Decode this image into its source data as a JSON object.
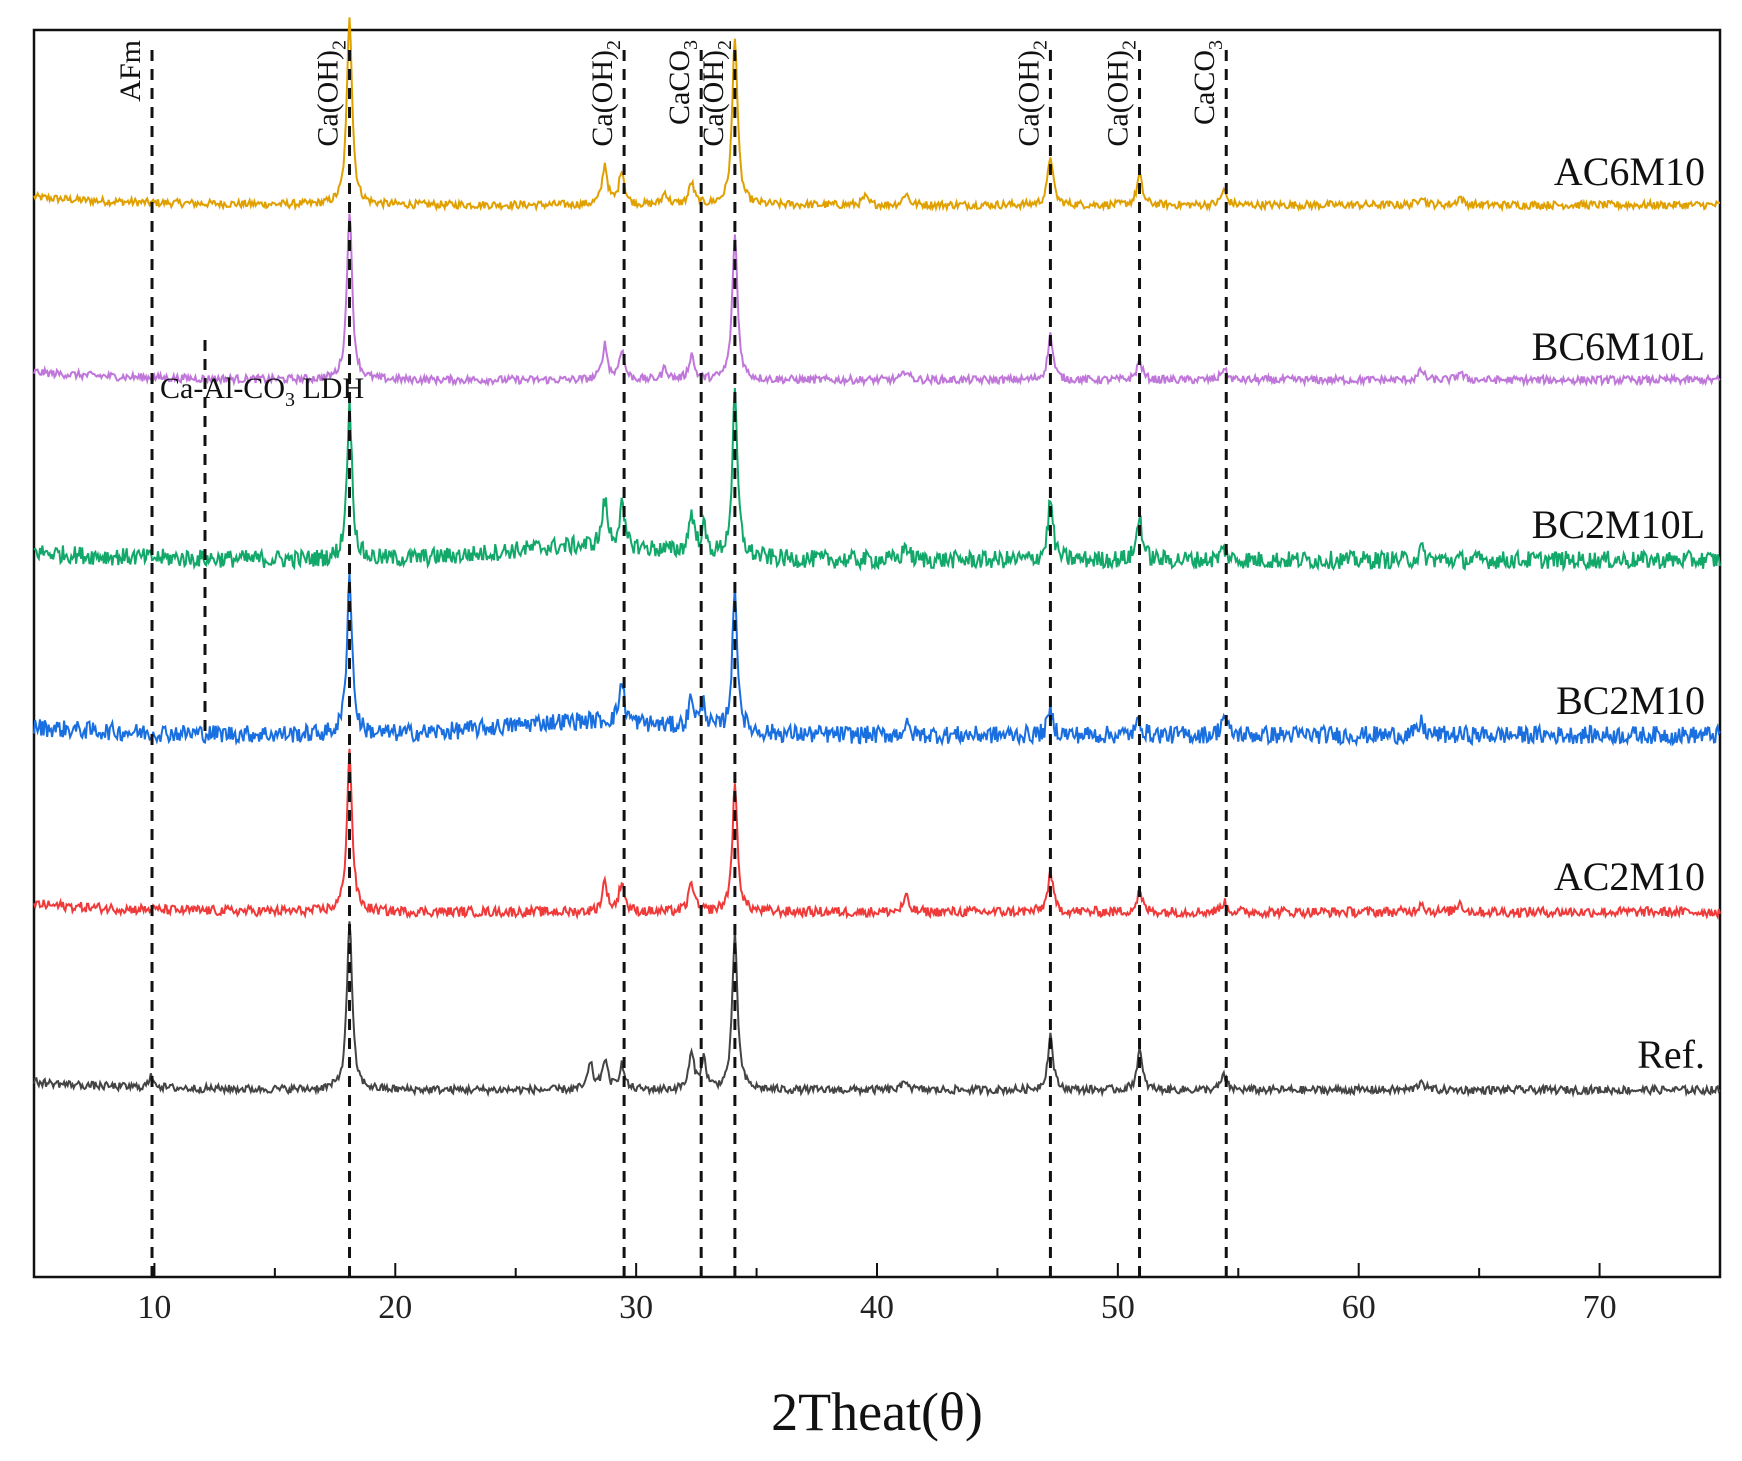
{
  "chart_data": {
    "type": "line",
    "title": "",
    "xlabel": "2Theat(θ)",
    "ylabel": "",
    "xlim": [
      5,
      75
    ],
    "xticks": [
      10,
      20,
      30,
      40,
      50,
      60,
      70
    ],
    "grid": false,
    "legend": "inline labels at right end of each trace",
    "series": [
      {
        "name": "AC6M10",
        "color": "#E0A000",
        "peaks": [
          [
            18.1,
            190
          ],
          [
            28.7,
            40
          ],
          [
            29.4,
            35
          ],
          [
            31.2,
            12
          ],
          [
            32.3,
            22
          ],
          [
            34.1,
            170
          ],
          [
            39.5,
            8
          ],
          [
            41.2,
            12
          ],
          [
            47.2,
            50
          ],
          [
            50.9,
            30
          ],
          [
            54.4,
            15
          ],
          [
            62.6,
            10
          ],
          [
            64.2,
            8
          ]
        ]
      },
      {
        "name": "BC6M10L",
        "color": "#C077DA",
        "peaks": [
          [
            18.1,
            170
          ],
          [
            28.7,
            35
          ],
          [
            29.4,
            30
          ],
          [
            31.2,
            12
          ],
          [
            32.3,
            25
          ],
          [
            34.1,
            145
          ],
          [
            41.2,
            10
          ],
          [
            47.2,
            45
          ],
          [
            50.9,
            20
          ],
          [
            54.4,
            12
          ],
          [
            62.6,
            10
          ],
          [
            64.2,
            8
          ]
        ]
      },
      {
        "name": "BC2M10L",
        "color": "#12A86A",
        "peaks": [
          [
            18.1,
            155
          ],
          [
            28.7,
            45
          ],
          [
            29.4,
            40
          ],
          [
            32.3,
            40
          ],
          [
            32.8,
            25
          ],
          [
            34.1,
            160
          ],
          [
            41.2,
            15
          ],
          [
            47.2,
            60
          ],
          [
            50.9,
            45
          ],
          [
            54.4,
            12
          ],
          [
            62.6,
            10
          ]
        ]
      },
      {
        "name": "BC2M10",
        "color": "#1A6FE0",
        "peaks": [
          [
            18.1,
            160
          ],
          [
            29.4,
            40
          ],
          [
            32.3,
            30
          ],
          [
            32.8,
            25
          ],
          [
            34.1,
            140
          ],
          [
            41.2,
            10
          ],
          [
            47.2,
            25
          ],
          [
            50.9,
            15
          ],
          [
            54.4,
            20
          ],
          [
            62.6,
            12
          ]
        ]
      },
      {
        "name": "AC2M10",
        "color": "#F03A3A",
        "peaks": [
          [
            18.1,
            160
          ],
          [
            28.7,
            30
          ],
          [
            29.4,
            30
          ],
          [
            32.3,
            30
          ],
          [
            34.1,
            125
          ],
          [
            41.2,
            15
          ],
          [
            47.2,
            40
          ],
          [
            50.9,
            20
          ],
          [
            54.4,
            10
          ],
          [
            62.6,
            10
          ],
          [
            64.2,
            10
          ]
        ]
      },
      {
        "name": "Ref.",
        "color": "#444444",
        "peaks": [
          [
            9.9,
            12
          ],
          [
            18.1,
            170
          ],
          [
            28.1,
            25
          ],
          [
            28.7,
            30
          ],
          [
            29.4,
            25
          ],
          [
            32.3,
            35
          ],
          [
            32.8,
            30
          ],
          [
            34.1,
            155
          ],
          [
            41.2,
            10
          ],
          [
            47.2,
            55
          ],
          [
            50.9,
            40
          ],
          [
            54.4,
            15
          ],
          [
            62.6,
            10
          ]
        ]
      }
    ],
    "reference_lines": [
      {
        "x": 9.9,
        "label": "AFm",
        "sub": ""
      },
      {
        "x": 18.1,
        "label": "Ca(OH)",
        "sub": "2"
      },
      {
        "x": 29.5,
        "label": "Ca(OH)",
        "sub": "2"
      },
      {
        "x": 32.7,
        "label": "CaCO",
        "sub": "3"
      },
      {
        "x": 34.1,
        "label": "Ca(OH)",
        "sub": "2"
      },
      {
        "x": 47.2,
        "label": "Ca(OH)",
        "sub": "2"
      },
      {
        "x": 50.9,
        "label": "Ca(OH)",
        "sub": "2"
      },
      {
        "x": 54.5,
        "label": "CaCO",
        "sub": "3"
      }
    ],
    "ldh_marker": {
      "x": 12.1,
      "label_pre": "Ca-Al-CO",
      "label_sub": "3",
      "label_post": " LDH"
    }
  }
}
